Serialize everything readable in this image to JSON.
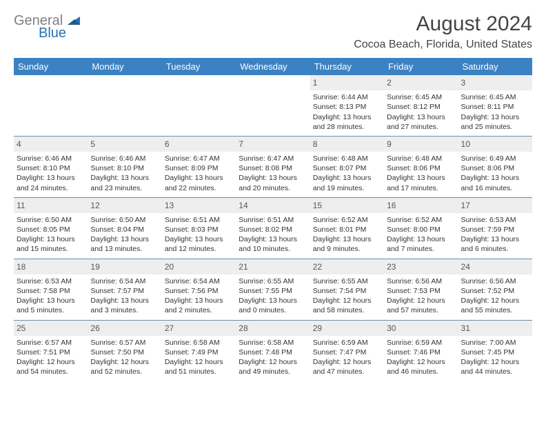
{
  "logo": {
    "text_top": "General",
    "text_bottom": "Blue"
  },
  "title": "August 2024",
  "subtitle": "Cocoa Beach, Florida, United States",
  "day_headers": [
    "Sunday",
    "Monday",
    "Tuesday",
    "Wednesday",
    "Thursday",
    "Friday",
    "Saturday"
  ],
  "colors": {
    "header_blue": "#3b82c4",
    "divider": "#6d8db0",
    "light_bg": "#eeeeee",
    "logo_gray": "#808080",
    "logo_blue": "#2a6fb0"
  },
  "weeks": [
    [
      null,
      null,
      null,
      null,
      {
        "n": "1",
        "sr": "Sunrise: 6:44 AM",
        "ss": "Sunset: 8:13 PM",
        "d1": "Daylight: 13 hours",
        "d2": "and 28 minutes."
      },
      {
        "n": "2",
        "sr": "Sunrise: 6:45 AM",
        "ss": "Sunset: 8:12 PM",
        "d1": "Daylight: 13 hours",
        "d2": "and 27 minutes."
      },
      {
        "n": "3",
        "sr": "Sunrise: 6:45 AM",
        "ss": "Sunset: 8:11 PM",
        "d1": "Daylight: 13 hours",
        "d2": "and 25 minutes."
      }
    ],
    [
      {
        "n": "4",
        "sr": "Sunrise: 6:46 AM",
        "ss": "Sunset: 8:10 PM",
        "d1": "Daylight: 13 hours",
        "d2": "and 24 minutes."
      },
      {
        "n": "5",
        "sr": "Sunrise: 6:46 AM",
        "ss": "Sunset: 8:10 PM",
        "d1": "Daylight: 13 hours",
        "d2": "and 23 minutes."
      },
      {
        "n": "6",
        "sr": "Sunrise: 6:47 AM",
        "ss": "Sunset: 8:09 PM",
        "d1": "Daylight: 13 hours",
        "d2": "and 22 minutes."
      },
      {
        "n": "7",
        "sr": "Sunrise: 6:47 AM",
        "ss": "Sunset: 8:08 PM",
        "d1": "Daylight: 13 hours",
        "d2": "and 20 minutes."
      },
      {
        "n": "8",
        "sr": "Sunrise: 6:48 AM",
        "ss": "Sunset: 8:07 PM",
        "d1": "Daylight: 13 hours",
        "d2": "and 19 minutes."
      },
      {
        "n": "9",
        "sr": "Sunrise: 6:48 AM",
        "ss": "Sunset: 8:06 PM",
        "d1": "Daylight: 13 hours",
        "d2": "and 17 minutes."
      },
      {
        "n": "10",
        "sr": "Sunrise: 6:49 AM",
        "ss": "Sunset: 8:06 PM",
        "d1": "Daylight: 13 hours",
        "d2": "and 16 minutes."
      }
    ],
    [
      {
        "n": "11",
        "sr": "Sunrise: 6:50 AM",
        "ss": "Sunset: 8:05 PM",
        "d1": "Daylight: 13 hours",
        "d2": "and 15 minutes."
      },
      {
        "n": "12",
        "sr": "Sunrise: 6:50 AM",
        "ss": "Sunset: 8:04 PM",
        "d1": "Daylight: 13 hours",
        "d2": "and 13 minutes."
      },
      {
        "n": "13",
        "sr": "Sunrise: 6:51 AM",
        "ss": "Sunset: 8:03 PM",
        "d1": "Daylight: 13 hours",
        "d2": "and 12 minutes."
      },
      {
        "n": "14",
        "sr": "Sunrise: 6:51 AM",
        "ss": "Sunset: 8:02 PM",
        "d1": "Daylight: 13 hours",
        "d2": "and 10 minutes."
      },
      {
        "n": "15",
        "sr": "Sunrise: 6:52 AM",
        "ss": "Sunset: 8:01 PM",
        "d1": "Daylight: 13 hours",
        "d2": "and 9 minutes."
      },
      {
        "n": "16",
        "sr": "Sunrise: 6:52 AM",
        "ss": "Sunset: 8:00 PM",
        "d1": "Daylight: 13 hours",
        "d2": "and 7 minutes."
      },
      {
        "n": "17",
        "sr": "Sunrise: 6:53 AM",
        "ss": "Sunset: 7:59 PM",
        "d1": "Daylight: 13 hours",
        "d2": "and 6 minutes."
      }
    ],
    [
      {
        "n": "18",
        "sr": "Sunrise: 6:53 AM",
        "ss": "Sunset: 7:58 PM",
        "d1": "Daylight: 13 hours",
        "d2": "and 5 minutes."
      },
      {
        "n": "19",
        "sr": "Sunrise: 6:54 AM",
        "ss": "Sunset: 7:57 PM",
        "d1": "Daylight: 13 hours",
        "d2": "and 3 minutes."
      },
      {
        "n": "20",
        "sr": "Sunrise: 6:54 AM",
        "ss": "Sunset: 7:56 PM",
        "d1": "Daylight: 13 hours",
        "d2": "and 2 minutes."
      },
      {
        "n": "21",
        "sr": "Sunrise: 6:55 AM",
        "ss": "Sunset: 7:55 PM",
        "d1": "Daylight: 13 hours",
        "d2": "and 0 minutes."
      },
      {
        "n": "22",
        "sr": "Sunrise: 6:55 AM",
        "ss": "Sunset: 7:54 PM",
        "d1": "Daylight: 12 hours",
        "d2": "and 58 minutes."
      },
      {
        "n": "23",
        "sr": "Sunrise: 6:56 AM",
        "ss": "Sunset: 7:53 PM",
        "d1": "Daylight: 12 hours",
        "d2": "and 57 minutes."
      },
      {
        "n": "24",
        "sr": "Sunrise: 6:56 AM",
        "ss": "Sunset: 7:52 PM",
        "d1": "Daylight: 12 hours",
        "d2": "and 55 minutes."
      }
    ],
    [
      {
        "n": "25",
        "sr": "Sunrise: 6:57 AM",
        "ss": "Sunset: 7:51 PM",
        "d1": "Daylight: 12 hours",
        "d2": "and 54 minutes."
      },
      {
        "n": "26",
        "sr": "Sunrise: 6:57 AM",
        "ss": "Sunset: 7:50 PM",
        "d1": "Daylight: 12 hours",
        "d2": "and 52 minutes."
      },
      {
        "n": "27",
        "sr": "Sunrise: 6:58 AM",
        "ss": "Sunset: 7:49 PM",
        "d1": "Daylight: 12 hours",
        "d2": "and 51 minutes."
      },
      {
        "n": "28",
        "sr": "Sunrise: 6:58 AM",
        "ss": "Sunset: 7:48 PM",
        "d1": "Daylight: 12 hours",
        "d2": "and 49 minutes."
      },
      {
        "n": "29",
        "sr": "Sunrise: 6:59 AM",
        "ss": "Sunset: 7:47 PM",
        "d1": "Daylight: 12 hours",
        "d2": "and 47 minutes."
      },
      {
        "n": "30",
        "sr": "Sunrise: 6:59 AM",
        "ss": "Sunset: 7:46 PM",
        "d1": "Daylight: 12 hours",
        "d2": "and 46 minutes."
      },
      {
        "n": "31",
        "sr": "Sunrise: 7:00 AM",
        "ss": "Sunset: 7:45 PM",
        "d1": "Daylight: 12 hours",
        "d2": "and 44 minutes."
      }
    ]
  ]
}
